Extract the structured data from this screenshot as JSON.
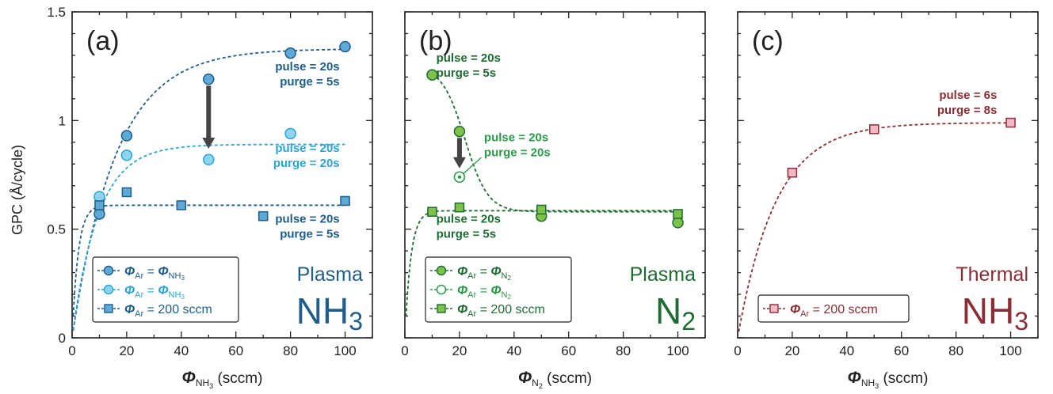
{
  "colors": {
    "a_dark": "#1f5d8a",
    "a_light": "#29a6d6",
    "a_fill_dark": "#5fa9d6",
    "a_fill_light": "#8ed3ef",
    "b_dark": "#1e6b33",
    "b_mid": "#2a9a4a",
    "b_fill": "#7fc24a",
    "c_dark": "#8a2e36",
    "c_fill": "#f2b8c6",
    "axis": "#222222",
    "arrow": "#444444"
  },
  "y_axis_label": "GPC (Å/cycle)",
  "chart_data": [
    {
      "type": "scatter",
      "panel_label": "(a)",
      "title_line1": "Plasma",
      "title_line2_main": "NH",
      "title_line2_sub": "3",
      "xlabel_phi": "Φ",
      "xlabel_sub": "NH",
      "xlabel_subsub": "3",
      "xlabel_units": " (sccm)",
      "xlim": [
        0,
        110
      ],
      "ylim": [
        0,
        1.5
      ],
      "xticks": [
        "0",
        "20",
        "40",
        "60",
        "80",
        "100"
      ],
      "yticks": [
        "0",
        "0.5",
        "1",
        "1.5"
      ],
      "legend_position": "bottom-left",
      "series": [
        {
          "legend_prefix": "Φ",
          "legend_sub": "Ar",
          "legend_mid": " = ",
          "legend_phi2": "Φ",
          "legend_sub2": "NH",
          "legend_subsub2": "3",
          "legend_rest": "",
          "marker": "circle",
          "color": "#1f5d8a",
          "fill": "#5fa9d6",
          "x": [
            10,
            20,
            50,
            80,
            100
          ],
          "y": [
            0.57,
            0.93,
            1.19,
            1.31,
            1.34
          ]
        },
        {
          "legend_prefix": "Φ",
          "legend_sub": "Ar",
          "legend_mid": " = ",
          "legend_phi2": "Φ",
          "legend_sub2": "NH",
          "legend_subsub2": "3",
          "legend_rest": "",
          "marker": "circle",
          "color": "#29a6d6",
          "fill": "#8ed3ef",
          "x": [
            10,
            20,
            50,
            80
          ],
          "y": [
            0.65,
            0.84,
            0.82,
            0.94
          ]
        },
        {
          "legend_prefix": "Φ",
          "legend_sub": "Ar",
          "legend_mid": "",
          "legend_phi2": "",
          "legend_sub2": "",
          "legend_subsub2": "",
          "legend_rest": " = 200 sccm",
          "marker": "square",
          "color": "#1f5d8a",
          "fill": "#5fa9d6",
          "x": [
            10,
            20,
            40,
            70,
            100
          ],
          "y": [
            0.61,
            0.67,
            0.61,
            0.56,
            0.63
          ]
        }
      ],
      "annotations": [
        {
          "line1": "pulse = 20s",
          "line2": "purge = 5s",
          "color": "#1f5d8a"
        },
        {
          "line1": "pulse = 20s",
          "line2": "purge = 20s",
          "color": "#29a6d6"
        },
        {
          "line1": "pulse = 20s",
          "line2": "purge = 5s",
          "color": "#1f5d8a"
        }
      ]
    },
    {
      "type": "scatter",
      "panel_label": "(b)",
      "title_line1": "Plasma",
      "title_line2_main": "N",
      "title_line2_sub": "2",
      "xlabel_phi": "Φ",
      "xlabel_sub": "N",
      "xlabel_subsub": "2",
      "xlabel_units": " (sccm)",
      "xlim": [
        0,
        110
      ],
      "ylim": [
        0,
        1.5
      ],
      "xticks": [
        "0",
        "20",
        "40",
        "60",
        "80",
        "100"
      ],
      "legend_position": "bottom-left",
      "series": [
        {
          "legend_prefix": "Φ",
          "legend_sub": "Ar",
          "legend_mid": " = ",
          "legend_phi2": "Φ",
          "legend_sub2": "N",
          "legend_subsub2": "2",
          "legend_rest": "",
          "marker": "circle",
          "color": "#1e6b33",
          "fill": "#7fc24a",
          "x": [
            10,
            20,
            50,
            100
          ],
          "y": [
            1.21,
            0.95,
            0.56,
            0.53
          ]
        },
        {
          "legend_prefix": "Φ",
          "legend_sub": "Ar",
          "legend_mid": " = ",
          "legend_phi2": "Φ",
          "legend_sub2": "N",
          "legend_subsub2": "2",
          "legend_rest": "",
          "marker": "open-circle",
          "color": "#2a9a4a",
          "fill": "#ffffff",
          "x": [
            20
          ],
          "y": [
            0.74
          ]
        },
        {
          "legend_prefix": "Φ",
          "legend_sub": "Ar",
          "legend_mid": "",
          "legend_phi2": "",
          "legend_sub2": "",
          "legend_subsub2": "",
          "legend_rest": " = 200 sccm",
          "marker": "square",
          "color": "#1e6b33",
          "fill": "#7fc24a",
          "x": [
            10,
            20,
            50,
            100
          ],
          "y": [
            0.58,
            0.6,
            0.59,
            0.57
          ]
        }
      ],
      "annotations": [
        {
          "line1": "pulse = 20s",
          "line2": "purge = 5s",
          "color": "#1e6b33"
        },
        {
          "line1": "pulse = 20s",
          "line2": "purge = 20s",
          "color": "#2a9a4a"
        },
        {
          "line1": "pulse = 20s",
          "line2": "purge = 5s",
          "color": "#1e6b33"
        }
      ]
    },
    {
      "type": "scatter",
      "panel_label": "(c)",
      "title_line1": "Thermal",
      "title_line2_main": "NH",
      "title_line2_sub": "3",
      "xlabel_phi": "Φ",
      "xlabel_sub": "NH",
      "xlabel_subsub": "3",
      "xlabel_units": " (sccm)",
      "xlim": [
        0,
        110
      ],
      "ylim": [
        0,
        1.5
      ],
      "xticks": [
        "0",
        "20",
        "40",
        "60",
        "80",
        "100"
      ],
      "legend_position": "bottom-left",
      "series": [
        {
          "legend_prefix": "Φ",
          "legend_sub": "Ar",
          "legend_mid": "",
          "legend_phi2": "",
          "legend_sub2": "",
          "legend_subsub2": "",
          "legend_rest": " = 200 sccm",
          "marker": "square",
          "color": "#8a2e36",
          "fill": "#f2b8c6",
          "x": [
            20,
            50,
            100
          ],
          "y": [
            0.76,
            0.96,
            0.99
          ]
        }
      ],
      "annotations": [
        {
          "line1": "pulse = 6s",
          "line2": "purge = 8s",
          "color": "#8a2e36"
        }
      ]
    }
  ]
}
